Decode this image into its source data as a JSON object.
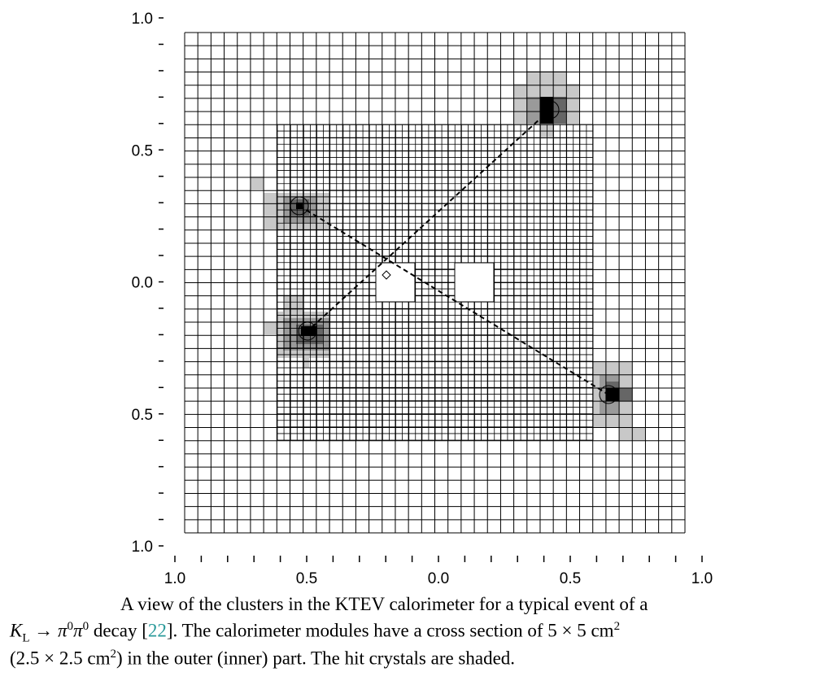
{
  "figure": {
    "xlim": [
      -1,
      1
    ],
    "ylim": [
      -1,
      1
    ],
    "xticks": [
      {
        "value": -1,
        "label": "1.0"
      },
      {
        "value": -0.5,
        "label": "0.5"
      },
      {
        "value": 0,
        "label": "0.0"
      },
      {
        "value": 0.5,
        "label": "0.5"
      },
      {
        "value": 1,
        "label": "1.0"
      }
    ],
    "yticks": [
      {
        "value": 1,
        "label": "1.0"
      },
      {
        "value": 0.5,
        "label": "0.5"
      },
      {
        "value": 0,
        "label": "0.0"
      },
      {
        "value": -0.5,
        "label": "0.5"
      },
      {
        "value": -1,
        "label": "1.0"
      }
    ],
    "caption": {
      "line1": "A view of the clusters in the KTEV calorimeter for a typical event of a",
      "k": "K",
      "k_sub": "L",
      "arrow": "→",
      "pi1": "π",
      "pi1_sup": "0",
      "pi2": "π",
      "pi2_sup": "0",
      "decay": " decay [",
      "ref": "22",
      "line2_rest": "]. The calorimeter modules have a cross section of 5 × 5 cm",
      "line2_sup": "2",
      "line3_start": "(2.5 × 2.5 cm",
      "line3_sup": "2",
      "line3_rest": ") in the outer (inner) part. The hit crystals are shaded."
    }
  }
}
